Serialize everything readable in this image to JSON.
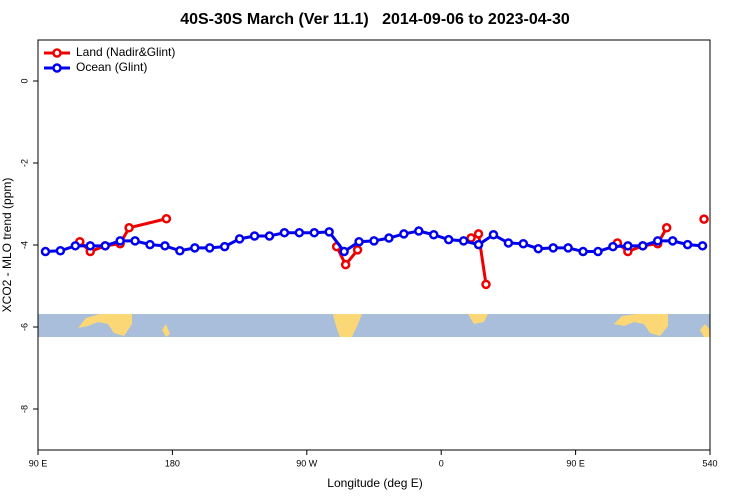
{
  "chart_data": {
    "type": "line",
    "title": "40S-30S March (Ver 11.1)   2014-09-06 to 2023-04-30",
    "x_label": "Longitude (deg E)",
    "y_label": "XCO2 - MLO trend (ppm)",
    "xlim": [
      90,
      540
    ],
    "xticks": [
      {
        "value": 90,
        "label": "90 E"
      },
      180,
      {
        "value": 270,
        "label": "90 W"
      },
      {
        "value": 360,
        "label": "0"
      },
      {
        "value": 450,
        "label": "90 E"
      },
      540
    ],
    "ylim": [
      -9,
      1
    ],
    "yticks": [
      0,
      -2,
      -4,
      -6,
      -8
    ],
    "legend": "top-left",
    "series": [
      {
        "name": "Land (Nadir&Glint)",
        "color": "#ee0000",
        "x": [
          118,
          125,
          135,
          145,
          151,
          176,
          233,
          290,
          296,
          304,
          340,
          380,
          385,
          390,
          460,
          478,
          485,
          495,
          505,
          511,
          520,
          536
        ],
        "values": [
          -3.92,
          -4.16,
          -4.02,
          -3.97,
          -3.58,
          -3.36,
          null,
          -4.04,
          -4.48,
          -4.12,
          null,
          -3.83,
          -3.73,
          -4.96,
          null,
          -3.95,
          -4.16,
          -4.02,
          -3.97,
          -3.58,
          null,
          -3.37
        ]
      },
      {
        "name": "Ocean (Glint)",
        "color": "#0000ee",
        "x": [
          95,
          105,
          115,
          125,
          135,
          145,
          155,
          165,
          175,
          185,
          195,
          205,
          215,
          225,
          235,
          245,
          255,
          265,
          275,
          285,
          295,
          305,
          315,
          325,
          335,
          345,
          355,
          365,
          375,
          385,
          395,
          405,
          415,
          425,
          435,
          445,
          455,
          465,
          475,
          485,
          495,
          505,
          515,
          525,
          535
        ],
        "values": [
          -4.16,
          -4.14,
          -4.02,
          -4.02,
          -4.02,
          -3.9,
          -3.9,
          -3.99,
          -4.02,
          -4.14,
          -4.07,
          -4.07,
          -4.04,
          -3.85,
          -3.78,
          -3.78,
          -3.7,
          -3.7,
          -3.7,
          -3.68,
          -4.16,
          -3.92,
          -3.9,
          -3.83,
          -3.73,
          -3.66,
          -3.75,
          -3.87,
          -3.9,
          -3.99,
          -3.75,
          -3.95,
          -3.97,
          -4.09,
          -4.07,
          -4.07,
          -4.16,
          -4.16,
          -4.04,
          -4.02,
          -4.02,
          -3.9,
          -3.9,
          -3.99,
          -4.02
        ]
      }
    ]
  }
}
